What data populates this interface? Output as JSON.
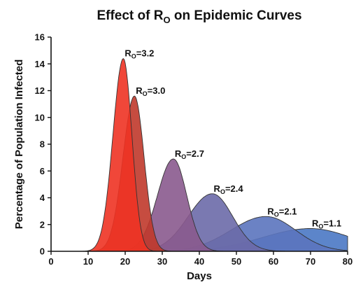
{
  "chart_data": {
    "type": "area",
    "title": {
      "text": "Effect of R",
      "subscript": "O",
      "suffix": " on Epidemic Curves"
    },
    "xlabel": "Days",
    "ylabel": "Percentage of Population Infected",
    "xlim": [
      0,
      80
    ],
    "ylim": [
      0,
      16
    ],
    "xticks": [
      0,
      10,
      20,
      30,
      40,
      50,
      60,
      70,
      80
    ],
    "yticks": [
      0,
      2,
      4,
      6,
      8,
      10,
      12,
      14,
      16
    ],
    "grid": false,
    "legend": "none",
    "series": [
      {
        "label_main": "R",
        "label_sub": "O",
        "label_rest": "=1.1",
        "color": "#4a78c4",
        "peak_day": 70,
        "peak_value": 1.7,
        "rise_width": 13,
        "fall_width": 11
      },
      {
        "label_main": "R",
        "label_sub": "O",
        "label_rest": "=2.1",
        "color": "#5b74be",
        "peak_day": 58,
        "peak_value": 2.6,
        "rise_width": 9.5,
        "fall_width": 8
      },
      {
        "label_main": "R",
        "label_sub": "O",
        "label_rest": "=2.4",
        "color": "#6b6aa8",
        "peak_day": 43.5,
        "peak_value": 4.3,
        "rise_width": 6.5,
        "fall_width": 5.5
      },
      {
        "label_main": "R",
        "label_sub": "O",
        "label_rest": "=2.7",
        "color": "#8a5a8e",
        "peak_day": 33,
        "peak_value": 6.9,
        "rise_width": 4.3,
        "fall_width": 3.6
      },
      {
        "label_main": "R",
        "label_sub": "O",
        "label_rest": "=3.0",
        "color": "#c0392b",
        "peak_day": 22.5,
        "peak_value": 11.6,
        "rise_width": 3.1,
        "fall_width": 2.6
      },
      {
        "label_main": "R",
        "label_sub": "O",
        "label_rest": "=3.2",
        "color": "#ee3324",
        "peak_day": 19.5,
        "peak_value": 14.4,
        "rise_width": 2.8,
        "fall_width": 2.3
      }
    ]
  }
}
